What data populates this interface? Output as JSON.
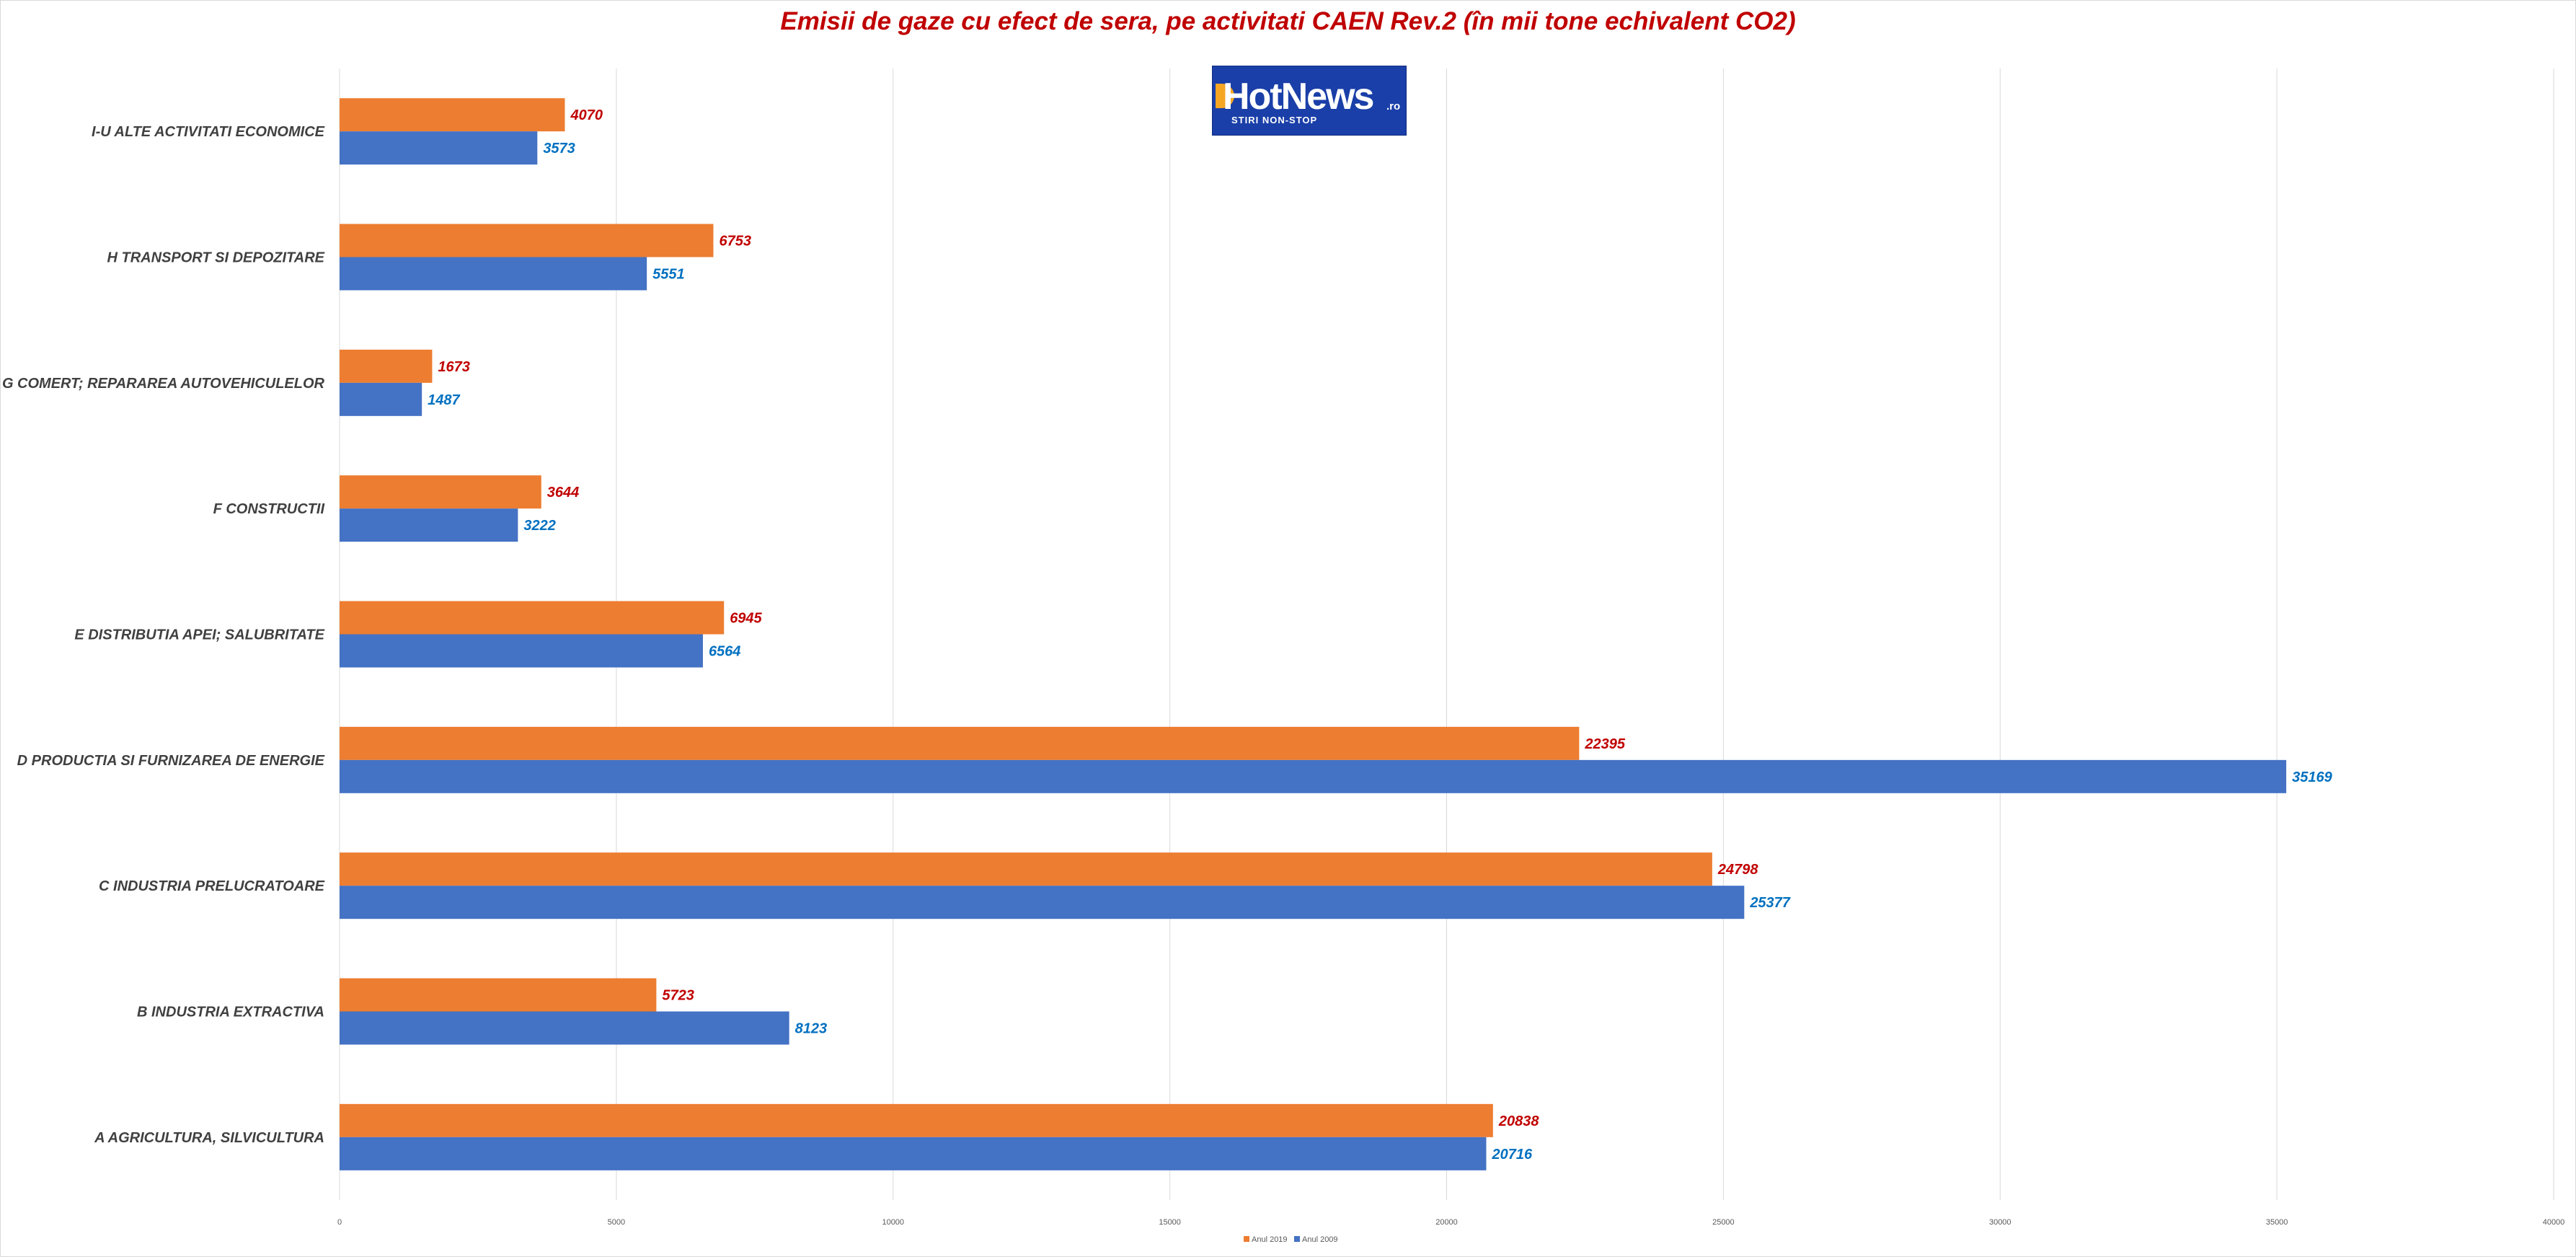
{
  "chart_data": {
    "type": "bar",
    "orientation": "horizontal",
    "title": "Emisii de gaze cu efect de sera, pe activitati CAEN Rev.2 (în mii tone echivalent CO2)",
    "categories": [
      "A AGRICULTURA, SILVICULTURA",
      "B INDUSTRIA EXTRACTIVA",
      "C INDUSTRIA PRELUCRATOARE",
      "D PRODUCTIA SI FURNIZAREA DE ENERGIE",
      "E DISTRIBUTIA APEI; SALUBRITATE",
      "F CONSTRUCTII",
      "G COMERT; REPARAREA AUTOVEHICULELOR",
      "H TRANSPORT SI DEPOZITARE",
      "I-U ALTE ACTIVITATI ECONOMICE"
    ],
    "series": [
      {
        "name": "Anul 2019",
        "color": "#ed7d31",
        "label_color": "#c00000",
        "values": [
          20838,
          5723,
          24798,
          22395,
          6945,
          3644,
          1673,
          6753,
          4070
        ]
      },
      {
        "name": "Anul 2009",
        "color": "#4472c4",
        "label_color": "#0070c0",
        "values": [
          20716,
          8123,
          25377,
          35169,
          6564,
          3222,
          1487,
          5551,
          3573
        ]
      }
    ],
    "xlim": [
      0,
      40000
    ],
    "x_ticks": [
      0,
      5000,
      10000,
      15000,
      20000,
      25000,
      30000,
      35000,
      40000
    ],
    "xlabel": "",
    "ylabel": "",
    "grid": true,
    "legend_position": "bottom"
  },
  "logo": {
    "brand": "HotNews",
    "suffix": ".ro",
    "tagline": "STIRI NON-STOP"
  }
}
